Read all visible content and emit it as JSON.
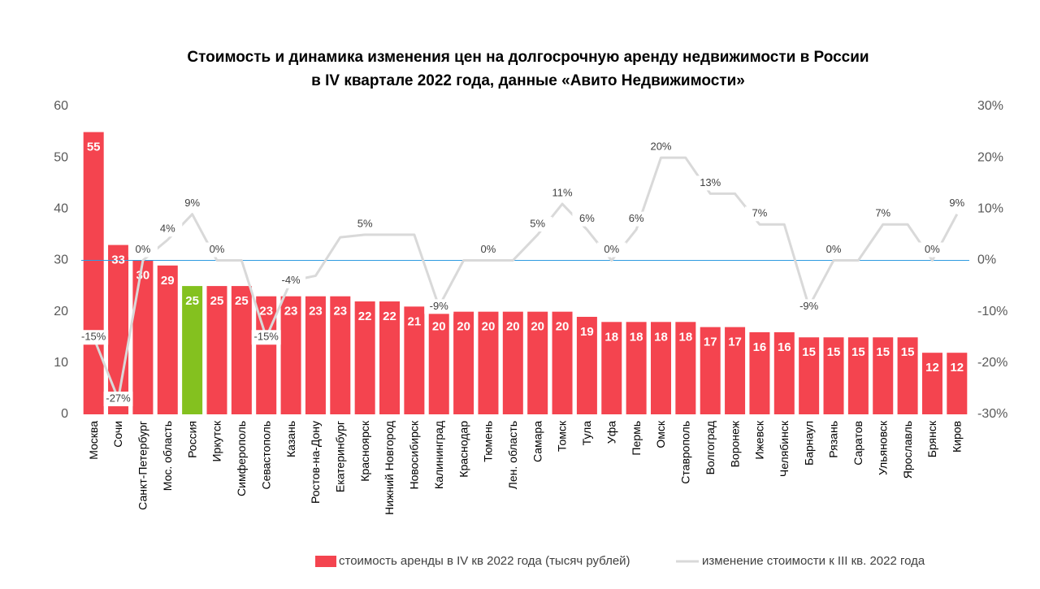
{
  "chart_data": {
    "type": "bar_line",
    "title": [
      "Стоимость и динамика изменения цен на долгосрочную аренду недвижимости в России",
      "в IV квартале 2022 года, данные «Авито Недвижимости»"
    ],
    "categories": [
      "Москва",
      "Сочи",
      "Санкт-Петербург",
      "Мос. область",
      "Россия",
      "Иркутск",
      "Симферополь",
      "Севастополь",
      "Казань",
      "Ростов-на-Дону",
      "Екатеринбург",
      "Красноярск",
      "Нижний Новгород",
      "Новосибирск",
      "Калининград",
      "Краснодар",
      "Тюмень",
      "Лен. область",
      "Самара",
      "Томск",
      "Тула",
      "Уфа",
      "Пермь",
      "Омск",
      "Ставрополь",
      "Волгоград",
      "Воронеж",
      "Ижевск",
      "Челябинск",
      "Барнаул",
      "Рязань",
      "Саратов",
      "Ульяновск",
      "Ярославль",
      "Брянск",
      "Киров"
    ],
    "series": [
      {
        "name": "стоимость аренды в IV кв 2022 года (тысяч рублей)",
        "color": "#f4444f",
        "mark": "bar",
        "values": [
          55,
          33,
          30,
          29,
          25,
          25,
          25,
          23,
          23,
          23,
          23,
          22,
          22,
          21,
          20,
          20,
          20,
          20,
          20,
          20,
          19,
          18,
          18,
          18,
          18,
          17,
          17,
          16,
          16,
          15,
          15,
          15,
          15,
          15,
          12,
          12
        ],
        "highlight": {
          "category": "Россия",
          "color": "#84c11f"
        }
      },
      {
        "name": "изменение стоимости к III кв. 2022 года",
        "color": "#d9d9d9",
        "mark": "line",
        "axis": "y2",
        "values": [
          -15,
          -27,
          0,
          4,
          9,
          0,
          0,
          -15,
          -4,
          -3,
          4.5,
          5,
          5,
          5,
          -9,
          0,
          0,
          0,
          5,
          11,
          6,
          0,
          6,
          20,
          20,
          13,
          13,
          7,
          7,
          -9,
          0,
          0,
          7,
          7,
          0,
          9
        ],
        "value_labels": [
          "-15%",
          "-27%",
          "0%",
          "4%",
          "9%",
          "0%",
          null,
          "-15%",
          "-4%",
          null,
          null,
          "5%",
          null,
          null,
          "-9%",
          null,
          "0%",
          null,
          "5%",
          "11%",
          "6%",
          "0%",
          "6%",
          "20%",
          null,
          "13%",
          null,
          "7%",
          null,
          "-9%",
          "0%",
          null,
          "7%",
          null,
          "0%",
          "9%"
        ]
      }
    ],
    "ylim": [
      0,
      60
    ],
    "yticks": [
      0,
      10,
      20,
      30,
      40,
      50,
      60
    ],
    "y2lim": [
      -30,
      30
    ],
    "y2ticks": [
      {
        "value": -30,
        "label": "-30%"
      },
      {
        "value": -20,
        "label": "-20%"
      },
      {
        "value": -10,
        "label": "-10%"
      },
      {
        "value": 0,
        "label": "0%"
      },
      {
        "value": 10,
        "label": "10%"
      },
      {
        "value": 20,
        "label": "20%"
      },
      {
        "value": 30,
        "label": "30%"
      }
    ],
    "zero_line_color": "#2e9be0",
    "legend": "bottom"
  }
}
